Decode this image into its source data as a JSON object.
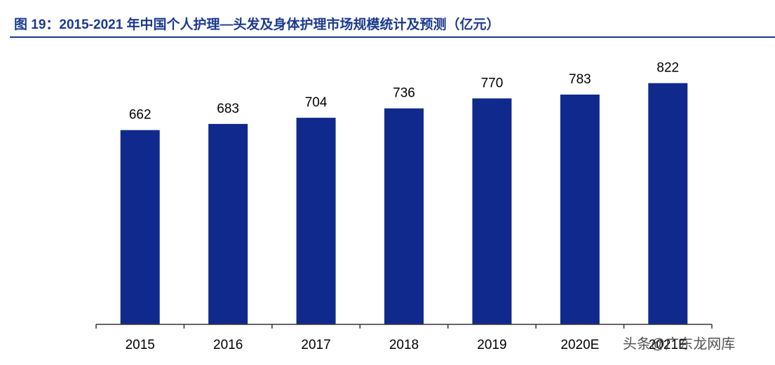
{
  "chart_data": {
    "type": "bar",
    "title": "图 19：2015-2021 年中国个人护理—头发及身体护理市场规模统计及预测（亿元）",
    "categories": [
      "2015",
      "2016",
      "2017",
      "2018",
      "2019",
      "2020E",
      "2021E"
    ],
    "values": [
      662,
      683,
      704,
      736,
      770,
      783,
      822
    ],
    "color": "#0f2a8c",
    "ylim": [
      0,
      900
    ],
    "watermark": "头条@广东龙网库"
  }
}
